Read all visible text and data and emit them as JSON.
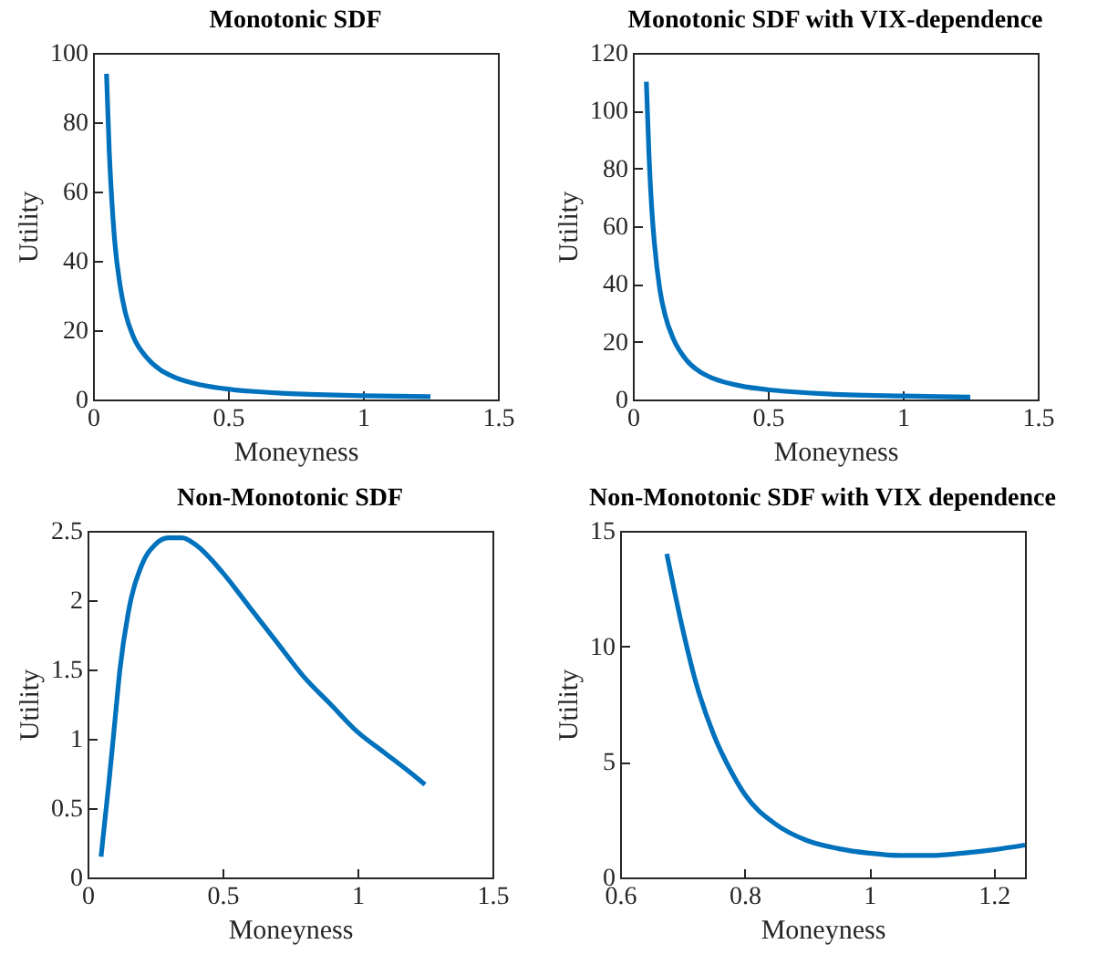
{
  "chart_data": [
    {
      "type": "line",
      "title": "Monotonic SDF",
      "xlabel": "Moneyness",
      "ylabel": "Utility",
      "xlim": [
        0,
        1.5
      ],
      "xticks": [
        0,
        0.5,
        1,
        1.5
      ],
      "ylim": [
        0,
        100
      ],
      "yticks": [
        0,
        20,
        40,
        60,
        80,
        100
      ],
      "x": [
        0.05,
        0.06,
        0.07,
        0.08,
        0.1,
        0.12,
        0.15,
        0.2,
        0.25,
        0.3,
        0.4,
        0.5,
        0.6,
        0.7,
        0.8,
        1.0,
        1.25
      ],
      "series": [
        {
          "color": "#0072bd",
          "values": [
            94,
            72,
            57,
            46,
            33,
            25,
            18,
            12,
            8.5,
            6.5,
            4.2,
            3,
            2.3,
            1.8,
            1.5,
            1.1,
            0.8
          ]
        }
      ]
    },
    {
      "type": "line",
      "title": "Monotonic SDF with VIX-dependence",
      "xlabel": "Moneyness",
      "ylabel": "Utility",
      "xlim": [
        0,
        1.5
      ],
      "xticks": [
        0,
        0.5,
        1,
        1.5
      ],
      "ylim": [
        0,
        120
      ],
      "yticks": [
        0,
        20,
        40,
        60,
        80,
        100,
        120
      ],
      "x": [
        0.05,
        0.06,
        0.07,
        0.08,
        0.1,
        0.12,
        0.15,
        0.2,
        0.25,
        0.3,
        0.4,
        0.5,
        0.6,
        0.7,
        0.8,
        1.0,
        1.25
      ],
      "series": [
        {
          "color": "#0072bd",
          "values": [
            110,
            84,
            66,
            54,
            38,
            29,
            21,
            13.5,
            9.5,
            7.2,
            4.7,
            3.4,
            2.6,
            2,
            1.6,
            1.2,
            0.8
          ]
        }
      ]
    },
    {
      "type": "line",
      "title": "Non-Monotonic SDF",
      "xlabel": "Moneyness",
      "ylabel": "Utility",
      "xlim": [
        0,
        1.5
      ],
      "xticks": [
        0,
        0.5,
        1,
        1.5
      ],
      "ylim": [
        0,
        2.5
      ],
      "yticks": [
        0,
        0.5,
        1,
        1.5,
        2,
        2.5
      ],
      "x": [
        0.05,
        0.08,
        0.1,
        0.12,
        0.15,
        0.2,
        0.25,
        0.3,
        0.35,
        0.4,
        0.5,
        0.6,
        0.7,
        0.8,
        0.9,
        1.0,
        1.1,
        1.2,
        1.25
      ],
      "series": [
        {
          "color": "#0072bd",
          "values": [
            0.15,
            0.7,
            1.1,
            1.5,
            1.9,
            2.25,
            2.4,
            2.45,
            2.45,
            2.4,
            2.2,
            1.95,
            1.7,
            1.45,
            1.25,
            1.05,
            0.9,
            0.75,
            0.67
          ]
        }
      ]
    },
    {
      "type": "line",
      "title": "Non-Monotonic SDF with VIX dependence",
      "xlabel": "Moneyness",
      "ylabel": "Utility",
      "xlim": [
        0.6,
        1.25
      ],
      "xticks": [
        0.6,
        0.8,
        1,
        1.2
      ],
      "ylim": [
        0,
        15
      ],
      "yticks": [
        0,
        5,
        10,
        15
      ],
      "x": [
        0.675,
        0.7,
        0.72,
        0.75,
        0.78,
        0.8,
        0.85,
        0.9,
        0.95,
        1.0,
        1.05,
        1.1,
        1.15,
        1.2,
        1.25
      ],
      "series": [
        {
          "color": "#0072bd",
          "values": [
            14,
            10.8,
            8.6,
            6.2,
            4.5,
            3.6,
            2.3,
            1.6,
            1.25,
            1.05,
            0.95,
            0.95,
            1.05,
            1.2,
            1.4
          ]
        }
      ]
    }
  ]
}
